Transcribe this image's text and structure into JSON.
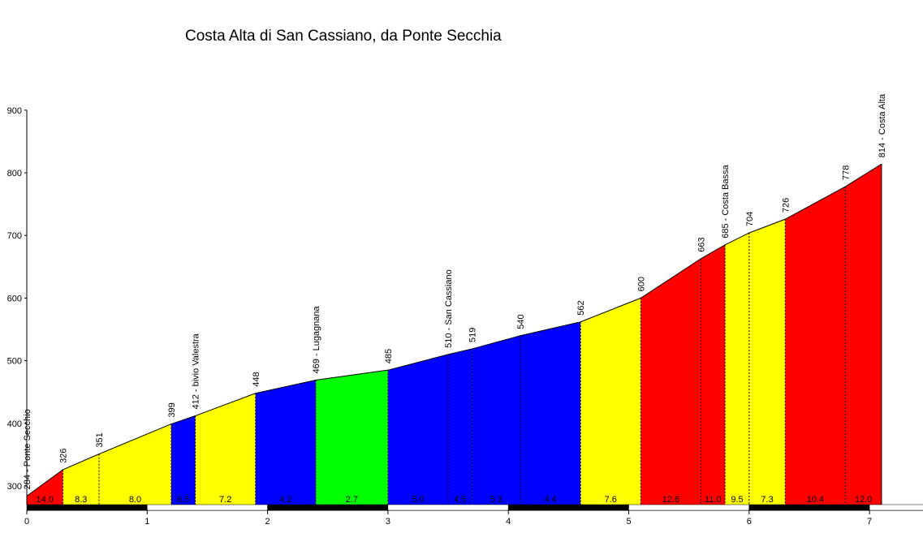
{
  "chart_data": {
    "type": "area",
    "title": "Costa Alta di San Cassiano, da Ponte Secchia",
    "xlabel": "",
    "ylabel": "",
    "xlim": [
      0,
      7.45
    ],
    "ylim": [
      270,
      900
    ],
    "y_ticks": [
      300,
      400,
      500,
      600,
      700,
      800,
      900
    ],
    "x_ticks": [
      0,
      1,
      2,
      3,
      4,
      5,
      6,
      7
    ],
    "grid": false,
    "profile": [
      {
        "x": 0.0,
        "y": 284,
        "label": "284 - Ponte Secchio"
      },
      {
        "x": 0.3,
        "y": 326,
        "label": "326"
      },
      {
        "x": 0.6,
        "y": 351,
        "label": "351"
      },
      {
        "x": 1.2,
        "y": 399,
        "label": "399"
      },
      {
        "x": 1.4,
        "y": 412,
        "label": "412 - bivio Valestra"
      },
      {
        "x": 1.9,
        "y": 448,
        "label": "448"
      },
      {
        "x": 2.4,
        "y": 469,
        "label": "469 - Lugagnana"
      },
      {
        "x": 3.0,
        "y": 485,
        "label": "485"
      },
      {
        "x": 3.5,
        "y": 510,
        "label": "510 - San Cassiano"
      },
      {
        "x": 3.7,
        "y": 519,
        "label": "519"
      },
      {
        "x": 4.1,
        "y": 540,
        "label": "540"
      },
      {
        "x": 4.6,
        "y": 562,
        "label": "562"
      },
      {
        "x": 5.1,
        "y": 600,
        "label": "600"
      },
      {
        "x": 5.6,
        "y": 663,
        "label": "663"
      },
      {
        "x": 5.8,
        "y": 685,
        "label": "685 - Costa Bassa"
      },
      {
        "x": 6.0,
        "y": 704,
        "label": "704"
      },
      {
        "x": 6.3,
        "y": 726,
        "label": "726"
      },
      {
        "x": 6.8,
        "y": 778,
        "label": "778"
      },
      {
        "x": 7.1,
        "y": 814,
        "label": "814 - Costa Alta"
      }
    ],
    "segments": [
      {
        "start": 0.0,
        "end": 0.3,
        "gradient": "14.0",
        "color": "#ff0000"
      },
      {
        "start": 0.3,
        "end": 0.6,
        "gradient": "8.3",
        "color": "#ffff00"
      },
      {
        "start": 0.6,
        "end": 1.2,
        "gradient": "8.0",
        "color": "#ffff00"
      },
      {
        "start": 1.2,
        "end": 1.4,
        "gradient": "6.5",
        "color": "#0000ff"
      },
      {
        "start": 1.4,
        "end": 1.9,
        "gradient": "7.2",
        "color": "#ffff00"
      },
      {
        "start": 1.9,
        "end": 2.4,
        "gradient": "4.2",
        "color": "#0000ff"
      },
      {
        "start": 2.4,
        "end": 3.0,
        "gradient": "2.7",
        "color": "#00ff00"
      },
      {
        "start": 3.0,
        "end": 3.5,
        "gradient": "5.0",
        "color": "#0000ff"
      },
      {
        "start": 3.5,
        "end": 3.7,
        "gradient": "4.5",
        "color": "#0000ff"
      },
      {
        "start": 3.7,
        "end": 4.1,
        "gradient": "5.3",
        "color": "#0000ff"
      },
      {
        "start": 4.1,
        "end": 4.6,
        "gradient": "4.4",
        "color": "#0000ff"
      },
      {
        "start": 4.6,
        "end": 5.1,
        "gradient": "7.6",
        "color": "#ffff00"
      },
      {
        "start": 5.1,
        "end": 5.6,
        "gradient": "12.6",
        "color": "#ff0000"
      },
      {
        "start": 5.6,
        "end": 5.8,
        "gradient": "11.0",
        "color": "#ff0000"
      },
      {
        "start": 5.8,
        "end": 6.0,
        "gradient": "9.5",
        "color": "#ffff00"
      },
      {
        "start": 6.0,
        "end": 6.3,
        "gradient": "7.3",
        "color": "#ffff00"
      },
      {
        "start": 6.3,
        "end": 6.8,
        "gradient": "10.4",
        "color": "#ff0000"
      },
      {
        "start": 6.8,
        "end": 7.1,
        "gradient": "12.0",
        "color": "#ff0000"
      }
    ]
  }
}
